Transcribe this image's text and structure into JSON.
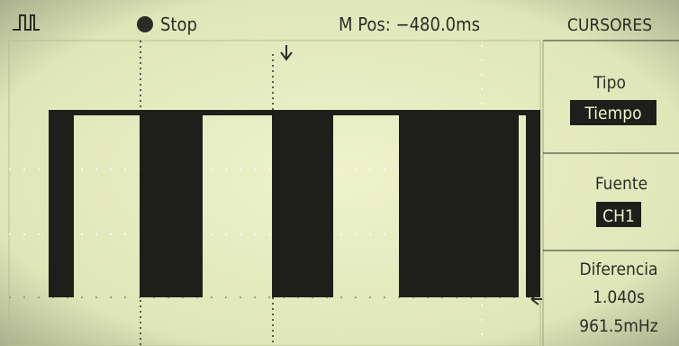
{
  "header": {
    "status": "Stop",
    "position": "M Pos: −480.0ms"
  },
  "menu": {
    "title": "CURSORES",
    "items": [
      {
        "label": "Tipo",
        "value": "Tiempo"
      },
      {
        "label": "Fuente",
        "value": "CH1"
      },
      {
        "label": "Diferencia",
        "value": "1.040s",
        "value2": "961.5mHz"
      }
    ]
  }
}
